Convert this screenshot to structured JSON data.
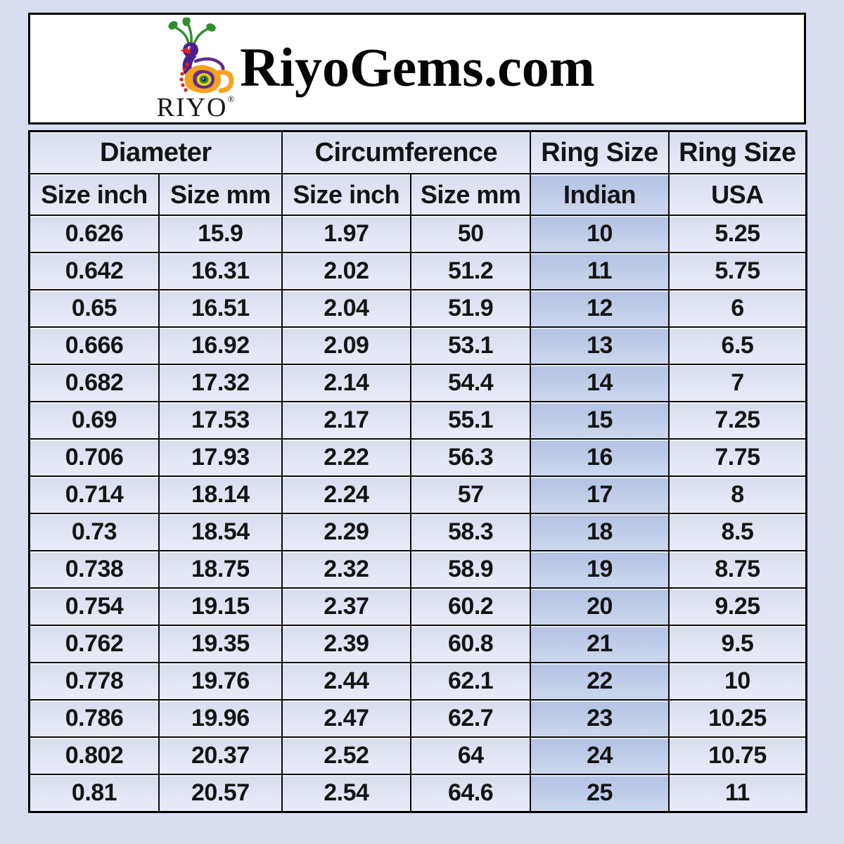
{
  "header": {
    "title": "RiyoGems.com",
    "logo": {
      "wordmark": "RIYO",
      "registered_mark": "®",
      "colors": {
        "peacock_purple": "#4a1f8f",
        "peacock_orange": "#f6a21d",
        "peacock_green": "#2f8f2f",
        "peacock_red": "#e0231c"
      }
    }
  },
  "table": {
    "group_headers": [
      "Diameter",
      "Circumference",
      "Ring Size",
      "Ring Size"
    ],
    "columns": [
      "Size inch",
      "Size mm",
      "Size inch",
      "Size mm",
      "Indian",
      "USA"
    ],
    "rows": [
      [
        "0.626",
        "15.9",
        "1.97",
        "50",
        "10",
        "5.25"
      ],
      [
        "0.642",
        "16.31",
        "2.02",
        "51.2",
        "11",
        "5.75"
      ],
      [
        "0.65",
        "16.51",
        "2.04",
        "51.9",
        "12",
        "6"
      ],
      [
        "0.666",
        "16.92",
        "2.09",
        "53.1",
        "13",
        "6.5"
      ],
      [
        "0.682",
        "17.32",
        "2.14",
        "54.4",
        "14",
        "7"
      ],
      [
        "0.69",
        "17.53",
        "2.17",
        "55.1",
        "15",
        "7.25"
      ],
      [
        "0.706",
        "17.93",
        "2.22",
        "56.3",
        "16",
        "7.75"
      ],
      [
        "0.714",
        "18.14",
        "2.24",
        "57",
        "17",
        "8"
      ],
      [
        "0.73",
        "18.54",
        "2.29",
        "58.3",
        "18",
        "8.5"
      ],
      [
        "0.738",
        "18.75",
        "2.32",
        "58.9",
        "19",
        "8.75"
      ],
      [
        "0.754",
        "19.15",
        "2.37",
        "60.2",
        "20",
        "9.25"
      ],
      [
        "0.762",
        "19.35",
        "2.39",
        "60.8",
        "21",
        "9.5"
      ],
      [
        "0.778",
        "19.76",
        "2.44",
        "62.1",
        "22",
        "10"
      ],
      [
        "0.786",
        "19.96",
        "2.47",
        "62.7",
        "23",
        "10.25"
      ],
      [
        "0.802",
        "20.37",
        "2.52",
        "64",
        "24",
        "10.75"
      ],
      [
        "0.81",
        "20.57",
        "2.54",
        "64.6",
        "25",
        "11"
      ]
    ]
  },
  "colors": {
    "page_background": "#d8ddef",
    "header_background": "#ffffff",
    "cell_background": "#e0e4f2",
    "highlight_column_background": "#b9c8e7",
    "border": "#000000",
    "text": "#141414"
  }
}
